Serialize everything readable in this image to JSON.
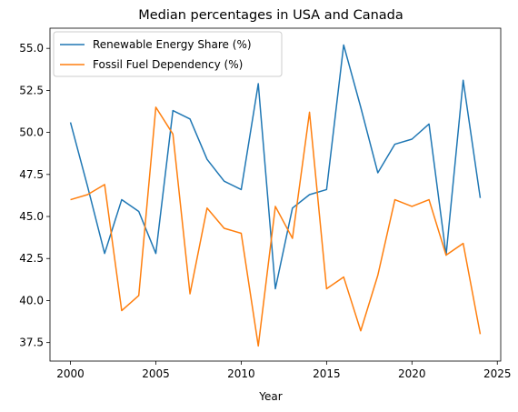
{
  "chart_data": {
    "type": "line",
    "title": "Median percentages in USA and Canada",
    "xlabel": "Year",
    "ylabel": "",
    "xlim": [
      1998.8,
      2025.2
    ],
    "ylim": [
      36.4,
      56.2
    ],
    "xticks": [
      2000,
      2005,
      2010,
      2015,
      2020,
      2025
    ],
    "yticks": [
      37.5,
      40.0,
      42.5,
      45.0,
      47.5,
      50.0,
      52.5,
      55.0
    ],
    "ytick_labels": [
      "37.5",
      "40.0",
      "42.5",
      "45.0",
      "47.5",
      "50.0",
      "52.5",
      "55.0"
    ],
    "grid": false,
    "legend_position": "top-left",
    "x": [
      2000,
      2001,
      2002,
      2003,
      2004,
      2005,
      2006,
      2007,
      2008,
      2009,
      2010,
      2011,
      2012,
      2013,
      2014,
      2015,
      2016,
      2017,
      2018,
      2019,
      2020,
      2021,
      2022,
      2023,
      2024
    ],
    "series": [
      {
        "name": "Renewable Energy Share (%)",
        "color": "#1f77b4",
        "values": [
          50.6,
          46.8,
          42.8,
          46.0,
          45.3,
          42.8,
          51.3,
          50.8,
          48.4,
          47.1,
          46.6,
          52.9,
          40.7,
          45.5,
          46.3,
          46.6,
          55.2,
          51.5,
          47.6,
          49.3,
          49.6,
          50.5,
          42.7,
          53.1,
          46.1
        ]
      },
      {
        "name": "Fossil Fuel Dependency (%)",
        "color": "#ff7f0e",
        "values": [
          46.0,
          46.3,
          46.9,
          39.4,
          40.3,
          51.5,
          49.9,
          40.4,
          45.5,
          44.3,
          44.0,
          37.3,
          45.6,
          43.7,
          51.2,
          40.7,
          41.4,
          38.2,
          41.5,
          46.0,
          45.6,
          46.0,
          42.7,
          43.4,
          38.0
        ]
      }
    ]
  }
}
